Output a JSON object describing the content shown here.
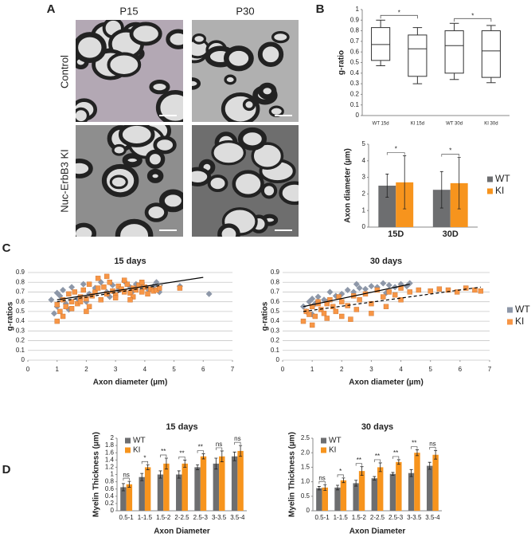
{
  "figure": {
    "panels": [
      "A",
      "B",
      "C",
      "D"
    ],
    "columns": [
      "P15",
      "P30"
    ],
    "rows": [
      "Control",
      "Nuc-ErbB3 KI"
    ]
  },
  "chart_data": [
    {
      "type": "box",
      "ylabel": "g-ratio",
      "categories": [
        "WT 15d",
        "KI 15d",
        "WT 30d",
        "KI 30d"
      ],
      "boxes": [
        {
          "min": 0.47,
          "q1": 0.52,
          "median": 0.67,
          "q3": 0.83,
          "max": 0.9
        },
        {
          "min": 0.3,
          "q1": 0.37,
          "median": 0.63,
          "q3": 0.76,
          "max": 0.83
        },
        {
          "min": 0.34,
          "q1": 0.4,
          "median": 0.66,
          "q3": 0.8,
          "max": 0.87
        },
        {
          "min": 0.31,
          "q1": 0.36,
          "median": 0.61,
          "q3": 0.8,
          "max": 0.85
        }
      ],
      "significance": [
        "*",
        "*"
      ],
      "significance_pairs": [
        [
          0,
          1
        ],
        [
          2,
          3
        ]
      ],
      "ylim": [
        0,
        1
      ],
      "yticks": [
        0,
        0.1,
        0.2,
        0.3,
        0.4,
        0.5,
        0.6,
        0.7,
        0.8,
        0.9,
        1
      ],
      "grid": false,
      "legend": false
    },
    {
      "type": "bar",
      "ylabel": "Axon diameter (µm)",
      "categories": [
        "15D",
        "30D"
      ],
      "series": [
        {
          "name": "WT",
          "color": "#6d6e70",
          "values": [
            2.5,
            2.25
          ],
          "errors": [
            0.7,
            1.1
          ]
        },
        {
          "name": "KI",
          "color": "#f7941d",
          "values": [
            2.7,
            2.65
          ],
          "errors": [
            1.6,
            1.55
          ]
        }
      ],
      "significance": [
        "*",
        "*"
      ],
      "ylim": [
        0,
        5
      ],
      "yticks": [
        0,
        1,
        2,
        3,
        4,
        5
      ],
      "grid": false,
      "legend": true,
      "legend_position": "right"
    },
    {
      "type": "scatter",
      "title": "15 days",
      "xlabel": "Axon diameter (µm)",
      "ylabel": "g-ratios",
      "series": [
        {
          "name": "WT",
          "color": "#8d97a8",
          "marker": "diamond",
          "x": [
            0.8,
            0.9,
            1.0,
            1.1,
            1.2,
            1.3,
            1.5,
            1.7,
            1.9,
            2.1,
            2.3,
            2.5,
            2.7,
            2.9,
            3.1,
            3.3,
            3.5,
            3.7,
            3.9,
            4.1,
            4.3,
            4.5,
            5.2,
            6.2,
            1.0,
            1.4,
            2.0,
            2.8,
            3.6,
            4.4
          ],
          "y": [
            0.62,
            0.48,
            0.55,
            0.66,
            0.72,
            0.58,
            0.75,
            0.63,
            0.78,
            0.68,
            0.74,
            0.8,
            0.7,
            0.77,
            0.72,
            0.81,
            0.75,
            0.78,
            0.79,
            0.73,
            0.76,
            0.7,
            0.76,
            0.68,
            0.69,
            0.52,
            0.6,
            0.65,
            0.71,
            0.8
          ]
        },
        {
          "name": "KI",
          "color": "#f79646",
          "marker": "square",
          "x": [
            1.0,
            1.1,
            1.2,
            1.3,
            1.4,
            1.5,
            1.6,
            1.7,
            1.8,
            1.9,
            2.0,
            2.1,
            2.2,
            2.3,
            2.4,
            2.5,
            2.6,
            2.7,
            2.8,
            2.9,
            3.0,
            3.1,
            3.2,
            3.3,
            3.4,
            3.5,
            3.6,
            3.7,
            3.8,
            3.9,
            4.0,
            4.1,
            4.2,
            4.3,
            4.4,
            4.5,
            1.2,
            1.5,
            1.8,
            2.1,
            2.4,
            2.7,
            3.0,
            3.3,
            3.6,
            3.9,
            5.2,
            1.0,
            2.0,
            3.5
          ],
          "y": [
            0.4,
            0.5,
            0.62,
            0.55,
            0.68,
            0.6,
            0.7,
            0.58,
            0.65,
            0.72,
            0.63,
            0.78,
            0.66,
            0.7,
            0.84,
            0.62,
            0.75,
            0.68,
            0.8,
            0.71,
            0.67,
            0.76,
            0.73,
            0.7,
            0.78,
            0.69,
            0.74,
            0.72,
            0.77,
            0.7,
            0.75,
            0.68,
            0.73,
            0.71,
            0.72,
            0.74,
            0.45,
            0.53,
            0.6,
            0.55,
            0.74,
            0.86,
            0.64,
            0.82,
            0.65,
            0.8,
            0.74,
            0.57,
            0.5,
            0.62
          ]
        }
      ],
      "fits": [
        {
          "x": [
            1,
            6
          ],
          "y": [
            0.62,
            0.85
          ],
          "dashed": false
        },
        {
          "x": [
            1,
            4.6
          ],
          "y": [
            0.6,
            0.77
          ],
          "dashed": true
        }
      ],
      "xlim": [
        0,
        7
      ],
      "xticks": [
        0,
        1,
        2,
        3,
        4,
        5,
        6,
        7
      ],
      "ylim": [
        0,
        0.9
      ],
      "yticks": [
        0,
        0.1,
        0.2,
        0.3,
        0.4,
        0.5,
        0.6,
        0.7,
        0.8,
        0.9
      ],
      "grid": true,
      "legend": false
    },
    {
      "type": "scatter",
      "title": "30 days",
      "xlabel": "Axon diameter (µm)",
      "ylabel": "g-ratios",
      "series": [
        {
          "name": "WT",
          "color": "#8d97a8",
          "marker": "diamond",
          "x": [
            0.7,
            0.8,
            0.9,
            1.0,
            1.1,
            1.2,
            1.4,
            1.6,
            1.8,
            2.0,
            2.2,
            2.4,
            2.6,
            2.8,
            3.0,
            3.2,
            3.4,
            3.6,
            3.8,
            4.0,
            4.2,
            4.3,
            1.0,
            1.5,
            2.5,
            3.5
          ],
          "y": [
            0.55,
            0.5,
            0.6,
            0.63,
            0.58,
            0.65,
            0.62,
            0.7,
            0.66,
            0.68,
            0.72,
            0.7,
            0.74,
            0.73,
            0.76,
            0.75,
            0.79,
            0.77,
            0.75,
            0.78,
            0.76,
            0.79,
            0.47,
            0.6,
            0.78,
            0.69
          ]
        },
        {
          "name": "KI",
          "color": "#f79646",
          "marker": "square",
          "x": [
            0.7,
            0.8,
            0.9,
            1.0,
            1.1,
            1.2,
            1.3,
            1.4,
            1.5,
            1.6,
            1.7,
            1.8,
            1.9,
            2.0,
            2.2,
            2.4,
            2.6,
            2.8,
            3.0,
            3.2,
            3.4,
            3.6,
            3.8,
            4.0,
            4.3,
            4.6,
            5.0,
            5.3,
            5.6,
            5.9,
            6.2,
            6.5,
            6.7,
            1.0,
            1.5,
            2.0,
            2.5,
            3.0,
            3.5,
            4.0,
            1.2,
            2.3
          ],
          "y": [
            0.4,
            0.5,
            0.47,
            0.55,
            0.45,
            0.6,
            0.52,
            0.48,
            0.58,
            0.62,
            0.55,
            0.5,
            0.65,
            0.6,
            0.56,
            0.66,
            0.62,
            0.68,
            0.58,
            0.72,
            0.65,
            0.7,
            0.67,
            0.74,
            0.7,
            0.72,
            0.71,
            0.73,
            0.72,
            0.7,
            0.74,
            0.72,
            0.71,
            0.36,
            0.43,
            0.45,
            0.52,
            0.48,
            0.55,
            0.62,
            0.58,
            0.42
          ]
        }
      ],
      "fits": [
        {
          "x": [
            0.7,
            4.3
          ],
          "y": [
            0.55,
            0.78
          ],
          "dashed": false
        },
        {
          "x": [
            0.7,
            6.7
          ],
          "y": [
            0.5,
            0.75
          ],
          "dashed": true
        }
      ],
      "xlim": [
        0,
        7
      ],
      "xticks": [
        0,
        1,
        2,
        3,
        4,
        5,
        6,
        7
      ],
      "ylim": [
        0,
        0.9
      ],
      "yticks": [
        0,
        0.1,
        0.2,
        0.3,
        0.4,
        0.5,
        0.6,
        0.7,
        0.8,
        0.9
      ],
      "grid": true,
      "legend": true,
      "legend_position": "right"
    },
    {
      "type": "bar",
      "title": "15 days",
      "xlabel": "Axon Diameter",
      "ylabel": "Myelin Thickness (µm)",
      "categories": [
        "0.5-1",
        "1-1.5",
        "1.5-2",
        "2-2.5",
        "2.5-3",
        "3-3.5",
        "3.5-4"
      ],
      "series": [
        {
          "name": "WT",
          "color": "#6d6e70",
          "values": [
            0.65,
            0.93,
            1.0,
            1.0,
            1.2,
            1.3,
            1.5
          ],
          "errors": [
            0.1,
            0.1,
            0.1,
            0.1,
            0.07,
            0.15,
            0.12
          ]
        },
        {
          "name": "KI",
          "color": "#f7941d",
          "values": [
            0.73,
            1.2,
            1.3,
            1.3,
            1.5,
            1.5,
            1.65
          ],
          "errors": [
            0.08,
            0.07,
            0.15,
            0.1,
            0.07,
            0.15,
            0.15
          ]
        }
      ],
      "significance": [
        "ns",
        "*",
        "**",
        "**",
        "**",
        "ns",
        "ns"
      ],
      "ylim": [
        0,
        2
      ],
      "yticks": [
        0,
        0.2,
        0.4,
        0.6,
        0.8,
        1,
        1.2,
        1.4,
        1.6,
        1.8,
        2
      ],
      "grid": false,
      "legend": true,
      "legend_position": "upper left"
    },
    {
      "type": "bar",
      "title": "30 days",
      "xlabel": "Axon Diameter",
      "ylabel": "Myelin Thickness (µm)",
      "categories": [
        "0.5-1",
        "1-1.5",
        "1.5-2",
        "2-2.5",
        "2.5-3",
        "3-3.5",
        "3.5-4"
      ],
      "series": [
        {
          "name": "WT",
          "color": "#6d6e70",
          "values": [
            0.78,
            0.8,
            0.95,
            1.12,
            1.27,
            1.3,
            1.55
          ],
          "errors": [
            0.06,
            0.08,
            0.1,
            0.06,
            0.05,
            0.12,
            0.12
          ]
        },
        {
          "name": "KI",
          "color": "#f7941d",
          "values": [
            0.8,
            1.05,
            1.37,
            1.5,
            1.68,
            2.0,
            1.93
          ],
          "errors": [
            0.1,
            0.08,
            0.15,
            0.15,
            0.08,
            0.1,
            0.15
          ]
        }
      ],
      "significance": [
        "ns",
        "*",
        "**",
        "**",
        "**",
        "**",
        "ns"
      ],
      "ylim": [
        0,
        2.5
      ],
      "yticks": [
        0,
        0.5,
        {
          "value": 1,
          "label": "1.0"
        },
        1.5,
        {
          "value": 2,
          "label": "2.0"
        },
        2.5
      ],
      "grid": false,
      "legend": true,
      "legend_position": "upper left"
    }
  ]
}
